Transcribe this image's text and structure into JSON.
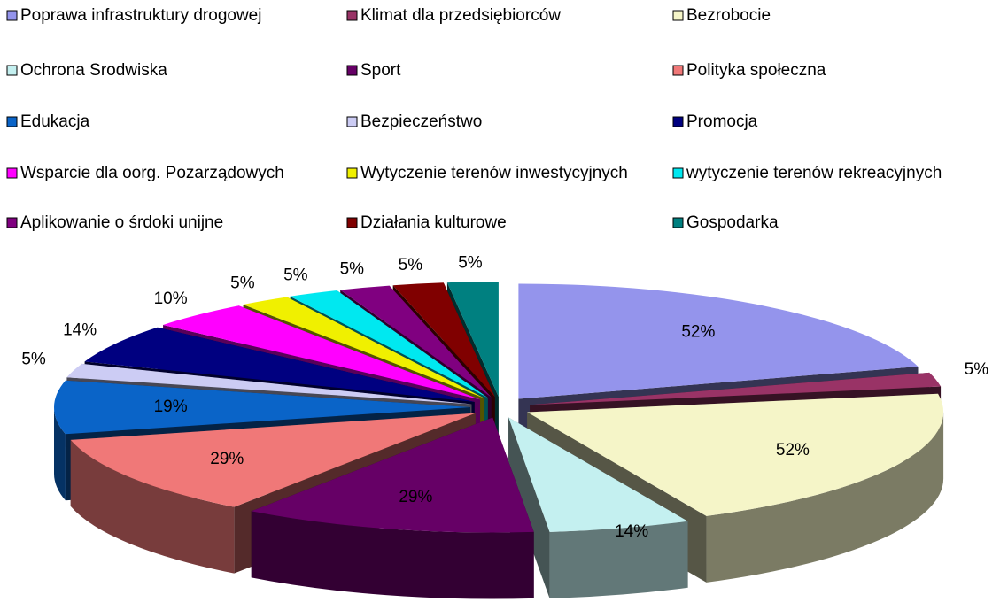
{
  "chart_data": {
    "type": "pie",
    "categories": [
      "Poprawa infrastruktury drogowej",
      "Klimat dla przedsiębiorców",
      "Bezrobocie",
      "Ochrona Srodwiska",
      "Sport",
      "Polityka społeczna",
      "Edukacja",
      "Bezpieczeństwo",
      "Promocja",
      "Wsparcie dla oorg. Pozarządowych",
      "Wytyczenie terenów inwestycyjnych",
      "wytyczenie terenów rekreacyjnych",
      "Aplikowanie o śrdoki unijne",
      "Działania kulturowe",
      "Gospodarka"
    ],
    "values": [
      52,
      5,
      52,
      14,
      29,
      29,
      19,
      5,
      14,
      10,
      5,
      5,
      5,
      5,
      5
    ],
    "value_labels": [
      "52%",
      "5%",
      "52%",
      "14%",
      "29%",
      "29%",
      "19%",
      "5%",
      "14%",
      "10%",
      "5%",
      "5%",
      "5%",
      "5%",
      "5%"
    ],
    "colors": [
      "#9494ec",
      "#993366",
      "#f5f5c8",
      "#c4f0f0",
      "#660066",
      "#f07878",
      "#0a64c8",
      "#ccccf4",
      "#000080",
      "#ff00ff",
      "#f0f000",
      "#00e8f0",
      "#800080",
      "#800000",
      "#008080"
    ]
  }
}
